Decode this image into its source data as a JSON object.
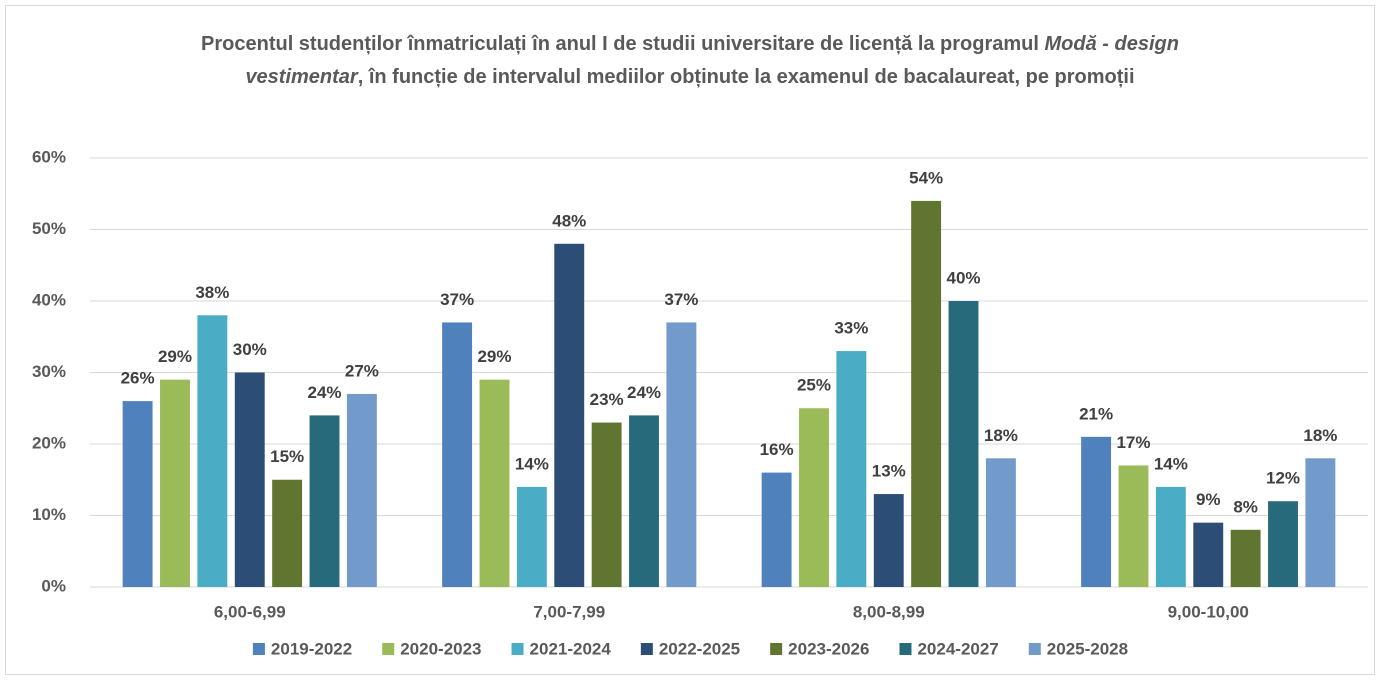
{
  "chart_data": {
    "type": "bar",
    "title": [
      "Procentul studenților înmatriculați în anul I de studii universitare de licență la programul ",
      "Modă - design vestimentar",
      ", în funcție de intervalul mediilor obținute la examenul de bacalaureat, pe promoții"
    ],
    "title_italic": [
      false,
      true,
      false
    ],
    "categories": [
      "6,00-6,99",
      "7,00-7,99",
      "8,00-8,99",
      "9,00-10,00"
    ],
    "series": [
      {
        "name": "2019-2022",
        "color": "#4f81bd",
        "values": [
          26,
          37,
          16,
          21
        ],
        "value_labels": [
          "26%",
          "37%",
          "16%",
          "21%"
        ]
      },
      {
        "name": "2020-2023",
        "color": "#9bbb59",
        "values": [
          29,
          29,
          25,
          17
        ],
        "value_labels": [
          "29%",
          "29%",
          "25%",
          "17%"
        ]
      },
      {
        "name": "2021-2024",
        "color": "#4bacc6",
        "values": [
          38,
          14,
          33,
          14
        ],
        "value_labels": [
          "38%",
          "14%",
          "33%",
          "14%"
        ]
      },
      {
        "name": "2022-2025",
        "color": "#2c4d75",
        "values": [
          30,
          48,
          13,
          9
        ],
        "value_labels": [
          "30%",
          "48%",
          "13%",
          "9%"
        ]
      },
      {
        "name": "2023-2026",
        "color": "#5f7530",
        "values": [
          15,
          23,
          54,
          8
        ],
        "value_labels": [
          "15%",
          "23%",
          "54%",
          "8%"
        ]
      },
      {
        "name": "2024-2027",
        "color": "#276a7c",
        "values": [
          24,
          24,
          40,
          12
        ],
        "value_labels": [
          "24%",
          "24%",
          "40%",
          "12%"
        ]
      },
      {
        "name": "2025-2028",
        "color": "#729aca",
        "values": [
          27,
          37,
          18,
          18
        ],
        "value_labels": [
          "27%",
          "37%",
          "18%",
          "18%"
        ]
      }
    ],
    "ylim": [
      0,
      60
    ],
    "yticks": [
      {
        "value": 0,
        "label": "0%"
      },
      {
        "value": 10,
        "label": "10%"
      },
      {
        "value": 20,
        "label": "20%"
      },
      {
        "value": 30,
        "label": "30%"
      },
      {
        "value": 40,
        "label": "40%"
      },
      {
        "value": 50,
        "label": "50%"
      },
      {
        "value": 60,
        "label": "60%"
      }
    ],
    "grid": true,
    "legend": "bottom"
  }
}
